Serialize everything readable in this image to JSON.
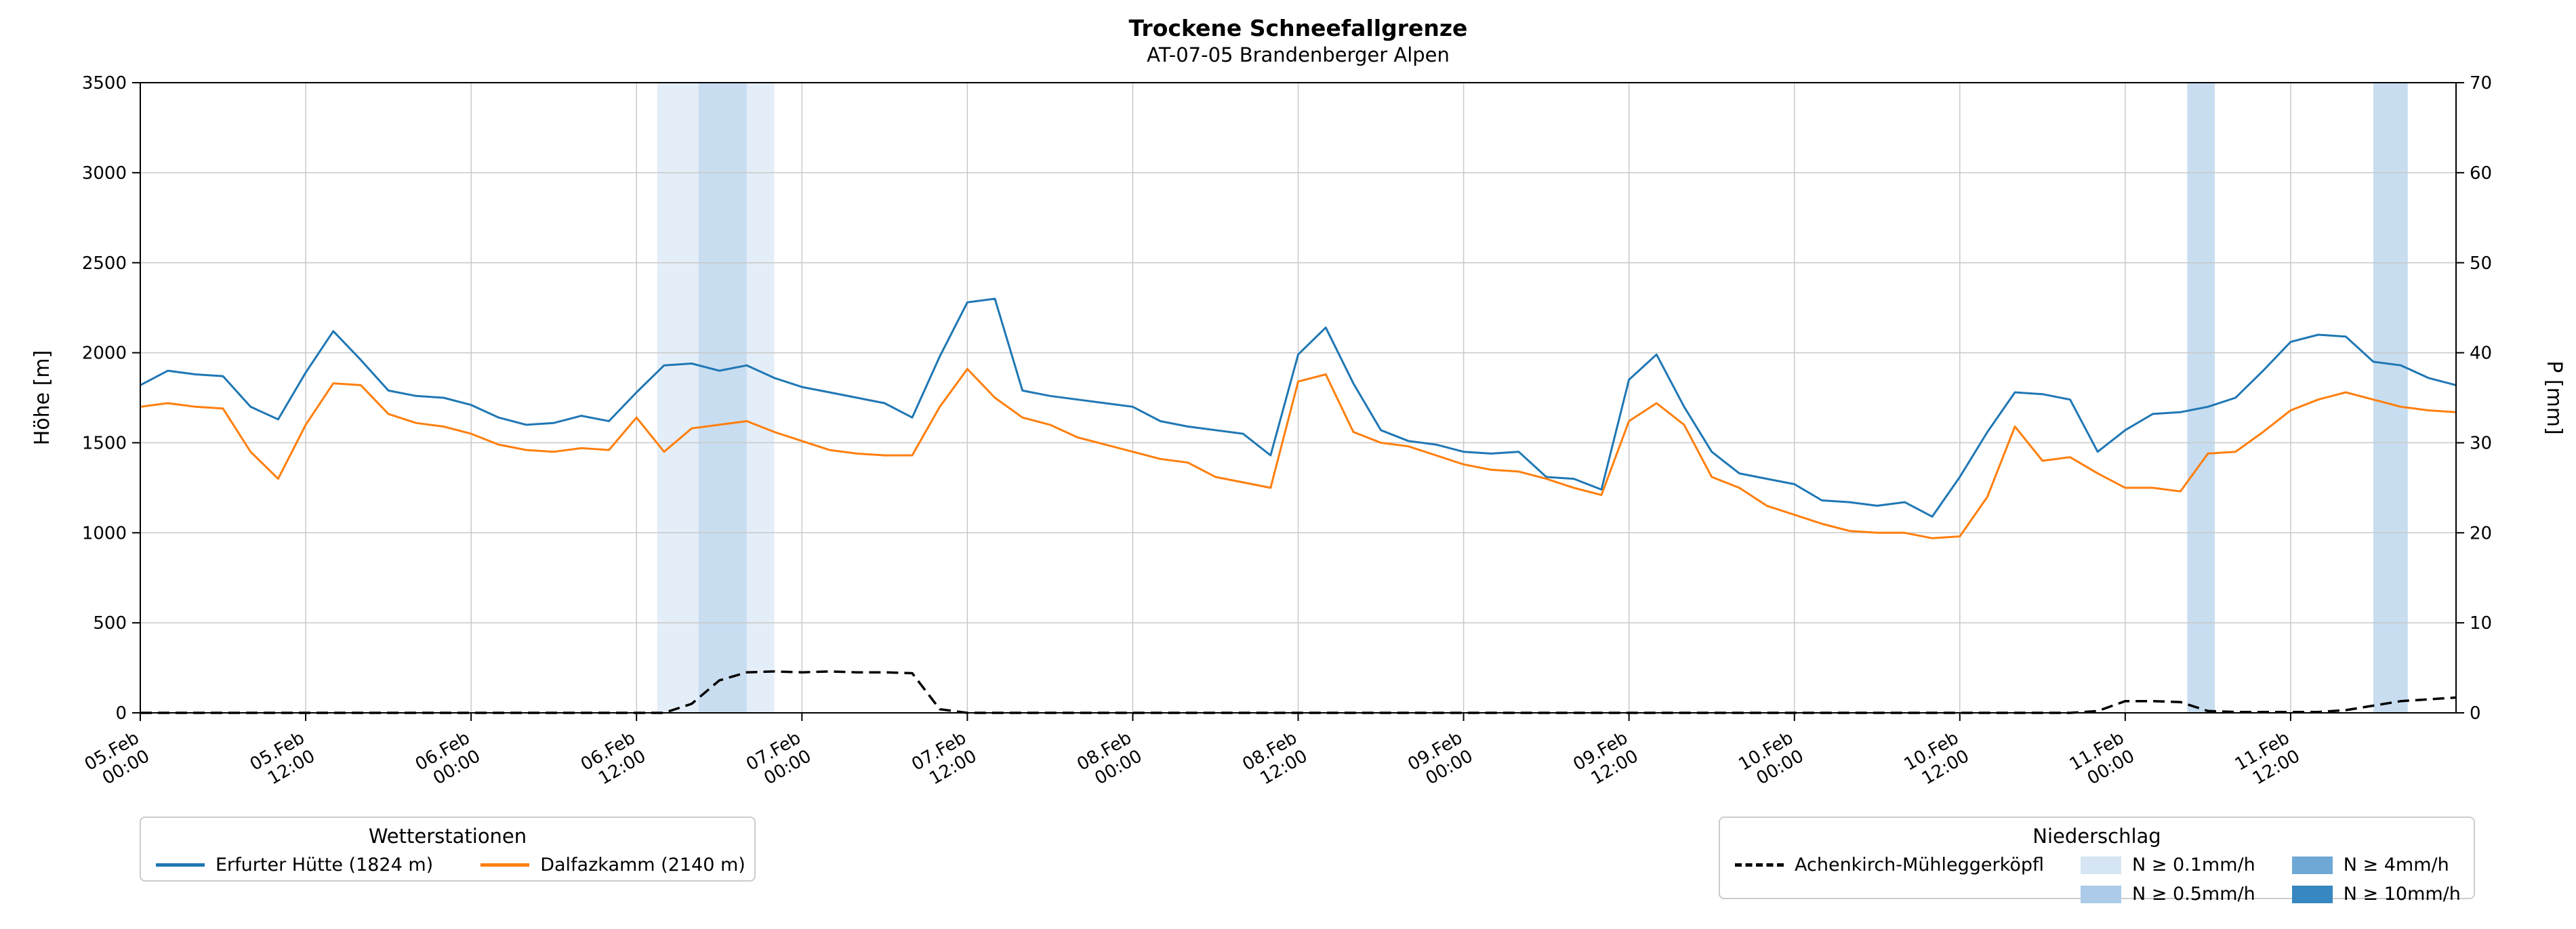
{
  "title": "Trockene Schneefallgrenze",
  "subtitle": "AT-07-05 Brandenberger Alpen",
  "chart_data": {
    "type": "line",
    "x_unit": "hours since 05.Feb 00:00",
    "start_hour": 0,
    "step_hours": 2,
    "end_hour": 168,
    "ylabel_left": "Höhe [m]",
    "ylabel_right": "P [mm]",
    "ylim_left": [
      0,
      3500
    ],
    "ylim_right": [
      0,
      70
    ],
    "yticks_left": [
      0,
      500,
      1000,
      1500,
      2000,
      2500,
      3000,
      3500
    ],
    "yticks_right": [
      0,
      10,
      20,
      30,
      40,
      50,
      60,
      70
    ],
    "grid": true,
    "xticks": [
      {
        "hour": 0,
        "date": "05.Feb",
        "time": "00:00"
      },
      {
        "hour": 12,
        "date": "05.Feb",
        "time": "12:00"
      },
      {
        "hour": 24,
        "date": "06.Feb",
        "time": "00:00"
      },
      {
        "hour": 36,
        "date": "06.Feb",
        "time": "12:00"
      },
      {
        "hour": 48,
        "date": "07.Feb",
        "time": "00:00"
      },
      {
        "hour": 60,
        "date": "07.Feb",
        "time": "12:00"
      },
      {
        "hour": 72,
        "date": "08.Feb",
        "time": "00:00"
      },
      {
        "hour": 84,
        "date": "08.Feb",
        "time": "12:00"
      },
      {
        "hour": 96,
        "date": "09.Feb",
        "time": "00:00"
      },
      {
        "hour": 108,
        "date": "09.Feb",
        "time": "12:00"
      },
      {
        "hour": 120,
        "date": "10.Feb",
        "time": "00:00"
      },
      {
        "hour": 132,
        "date": "10.Feb",
        "time": "12:00"
      },
      {
        "hour": 144,
        "date": "11.Feb",
        "time": "00:00"
      },
      {
        "hour": 156,
        "date": "11.Feb",
        "time": "12:00"
      }
    ],
    "series": [
      {
        "name": "Erfurter Hütte (1824 m)",
        "color": "#1f77b4",
        "axis": "left",
        "style": "solid",
        "values": [
          1820,
          1900,
          1880,
          1870,
          1700,
          1630,
          1890,
          2120,
          1960,
          1790,
          1760,
          1750,
          1710,
          1640,
          1600,
          1610,
          1650,
          1620,
          1780,
          1930,
          1940,
          1900,
          1930,
          1860,
          1810,
          1780,
          1750,
          1720,
          1640,
          1980,
          2280,
          2300,
          1790,
          1760,
          1740,
          1720,
          1700,
          1620,
          1590,
          1570,
          1550,
          1430,
          1990,
          2140,
          1830,
          1570,
          1510,
          1490,
          1450,
          1440,
          1450,
          1310,
          1300,
          1240,
          1850,
          1990,
          1700,
          1450,
          1330,
          1300,
          1270,
          1180,
          1170,
          1150,
          1170,
          1090,
          1310,
          1560,
          1780,
          1770,
          1740,
          1450,
          1570,
          1660,
          1670,
          1700,
          1750,
          1900,
          2060,
          2100,
          2090,
          1950,
          1930,
          1860,
          1820
        ]
      },
      {
        "name": "Dalfazkamm (2140 m)",
        "color": "#ff7f0e",
        "axis": "left",
        "style": "solid",
        "values": [
          1700,
          1720,
          1700,
          1690,
          1450,
          1300,
          1600,
          1830,
          1820,
          1660,
          1610,
          1590,
          1550,
          1490,
          1460,
          1450,
          1470,
          1460,
          1640,
          1450,
          1580,
          1600,
          1620,
          1560,
          1510,
          1460,
          1440,
          1430,
          1430,
          1700,
          1910,
          1750,
          1640,
          1600,
          1530,
          1490,
          1450,
          1410,
          1390,
          1310,
          1280,
          1250,
          1840,
          1880,
          1560,
          1500,
          1480,
          1430,
          1380,
          1350,
          1340,
          1300,
          1250,
          1210,
          1620,
          1720,
          1600,
          1310,
          1250,
          1150,
          1100,
          1050,
          1010,
          1000,
          1000,
          970,
          980,
          1200,
          1590,
          1400,
          1420,
          1330,
          1250,
          1250,
          1230,
          1440,
          1450,
          1560,
          1680,
          1740,
          1780,
          1740,
          1700,
          1680,
          1670
        ]
      },
      {
        "name": "Achenkirch-Mühleggerköpfl",
        "color": "#000000",
        "axis": "right",
        "style": "dashed",
        "values": [
          0,
          0,
          0,
          0,
          0,
          0,
          0,
          0,
          0,
          0,
          0,
          0,
          0,
          0,
          0,
          0,
          0,
          0,
          0,
          0,
          1.0,
          3.6,
          4.5,
          4.6,
          4.5,
          4.6,
          4.5,
          4.5,
          4.4,
          0.4,
          0,
          0,
          0,
          0,
          0,
          0,
          0,
          0,
          0,
          0,
          0,
          0,
          0,
          0,
          0,
          0,
          0,
          0,
          0,
          0,
          0,
          0,
          0,
          0,
          0,
          0,
          0,
          0,
          0,
          0,
          0,
          0,
          0,
          0,
          0,
          0,
          0,
          0,
          0,
          0,
          0,
          0.2,
          1.3,
          1.3,
          1.2,
          0.2,
          0.1,
          0.1,
          0.1,
          0.1,
          0.3,
          0.8,
          1.3,
          1.5,
          1.7
        ]
      }
    ],
    "precip_bands": [
      {
        "start_hour": 37.5,
        "end_hour": 40.5,
        "level": "0.1"
      },
      {
        "start_hour": 40.5,
        "end_hour": 44.0,
        "level": "0.5"
      },
      {
        "start_hour": 44.0,
        "end_hour": 46.0,
        "level": "0.1"
      },
      {
        "start_hour": 148.5,
        "end_hour": 150.5,
        "level": "0.5"
      },
      {
        "start_hour": 162.0,
        "end_hour": 164.5,
        "level": "0.5"
      }
    ],
    "band_colors": {
      "0.1": "#d5e5f4",
      "0.5": "#abcbe8",
      "4": "#6fa8d4",
      "10": "#3787c0"
    }
  },
  "legend_stations": {
    "title": "Wetterstationen",
    "entries": [
      {
        "label": "Erfurter Hütte (1824 m)",
        "color": "#1f77b4"
      },
      {
        "label": "Dalfazkamm (2140 m)",
        "color": "#ff7f0e"
      }
    ]
  },
  "legend_precip": {
    "title": "Niederschlag",
    "station": {
      "label": "Achenkirch-Mühleggerköpfl",
      "color": "#000000"
    },
    "levels": [
      {
        "label": "N ≥ 0.1mm/h",
        "color": "#d5e5f4"
      },
      {
        "label": "N ≥ 0.5mm/h",
        "color": "#abcbe8"
      },
      {
        "label": "N ≥ 4mm/h",
        "color": "#6fa8d4"
      },
      {
        "label": "N ≥ 10mm/h",
        "color": "#3787c0"
      }
    ]
  }
}
